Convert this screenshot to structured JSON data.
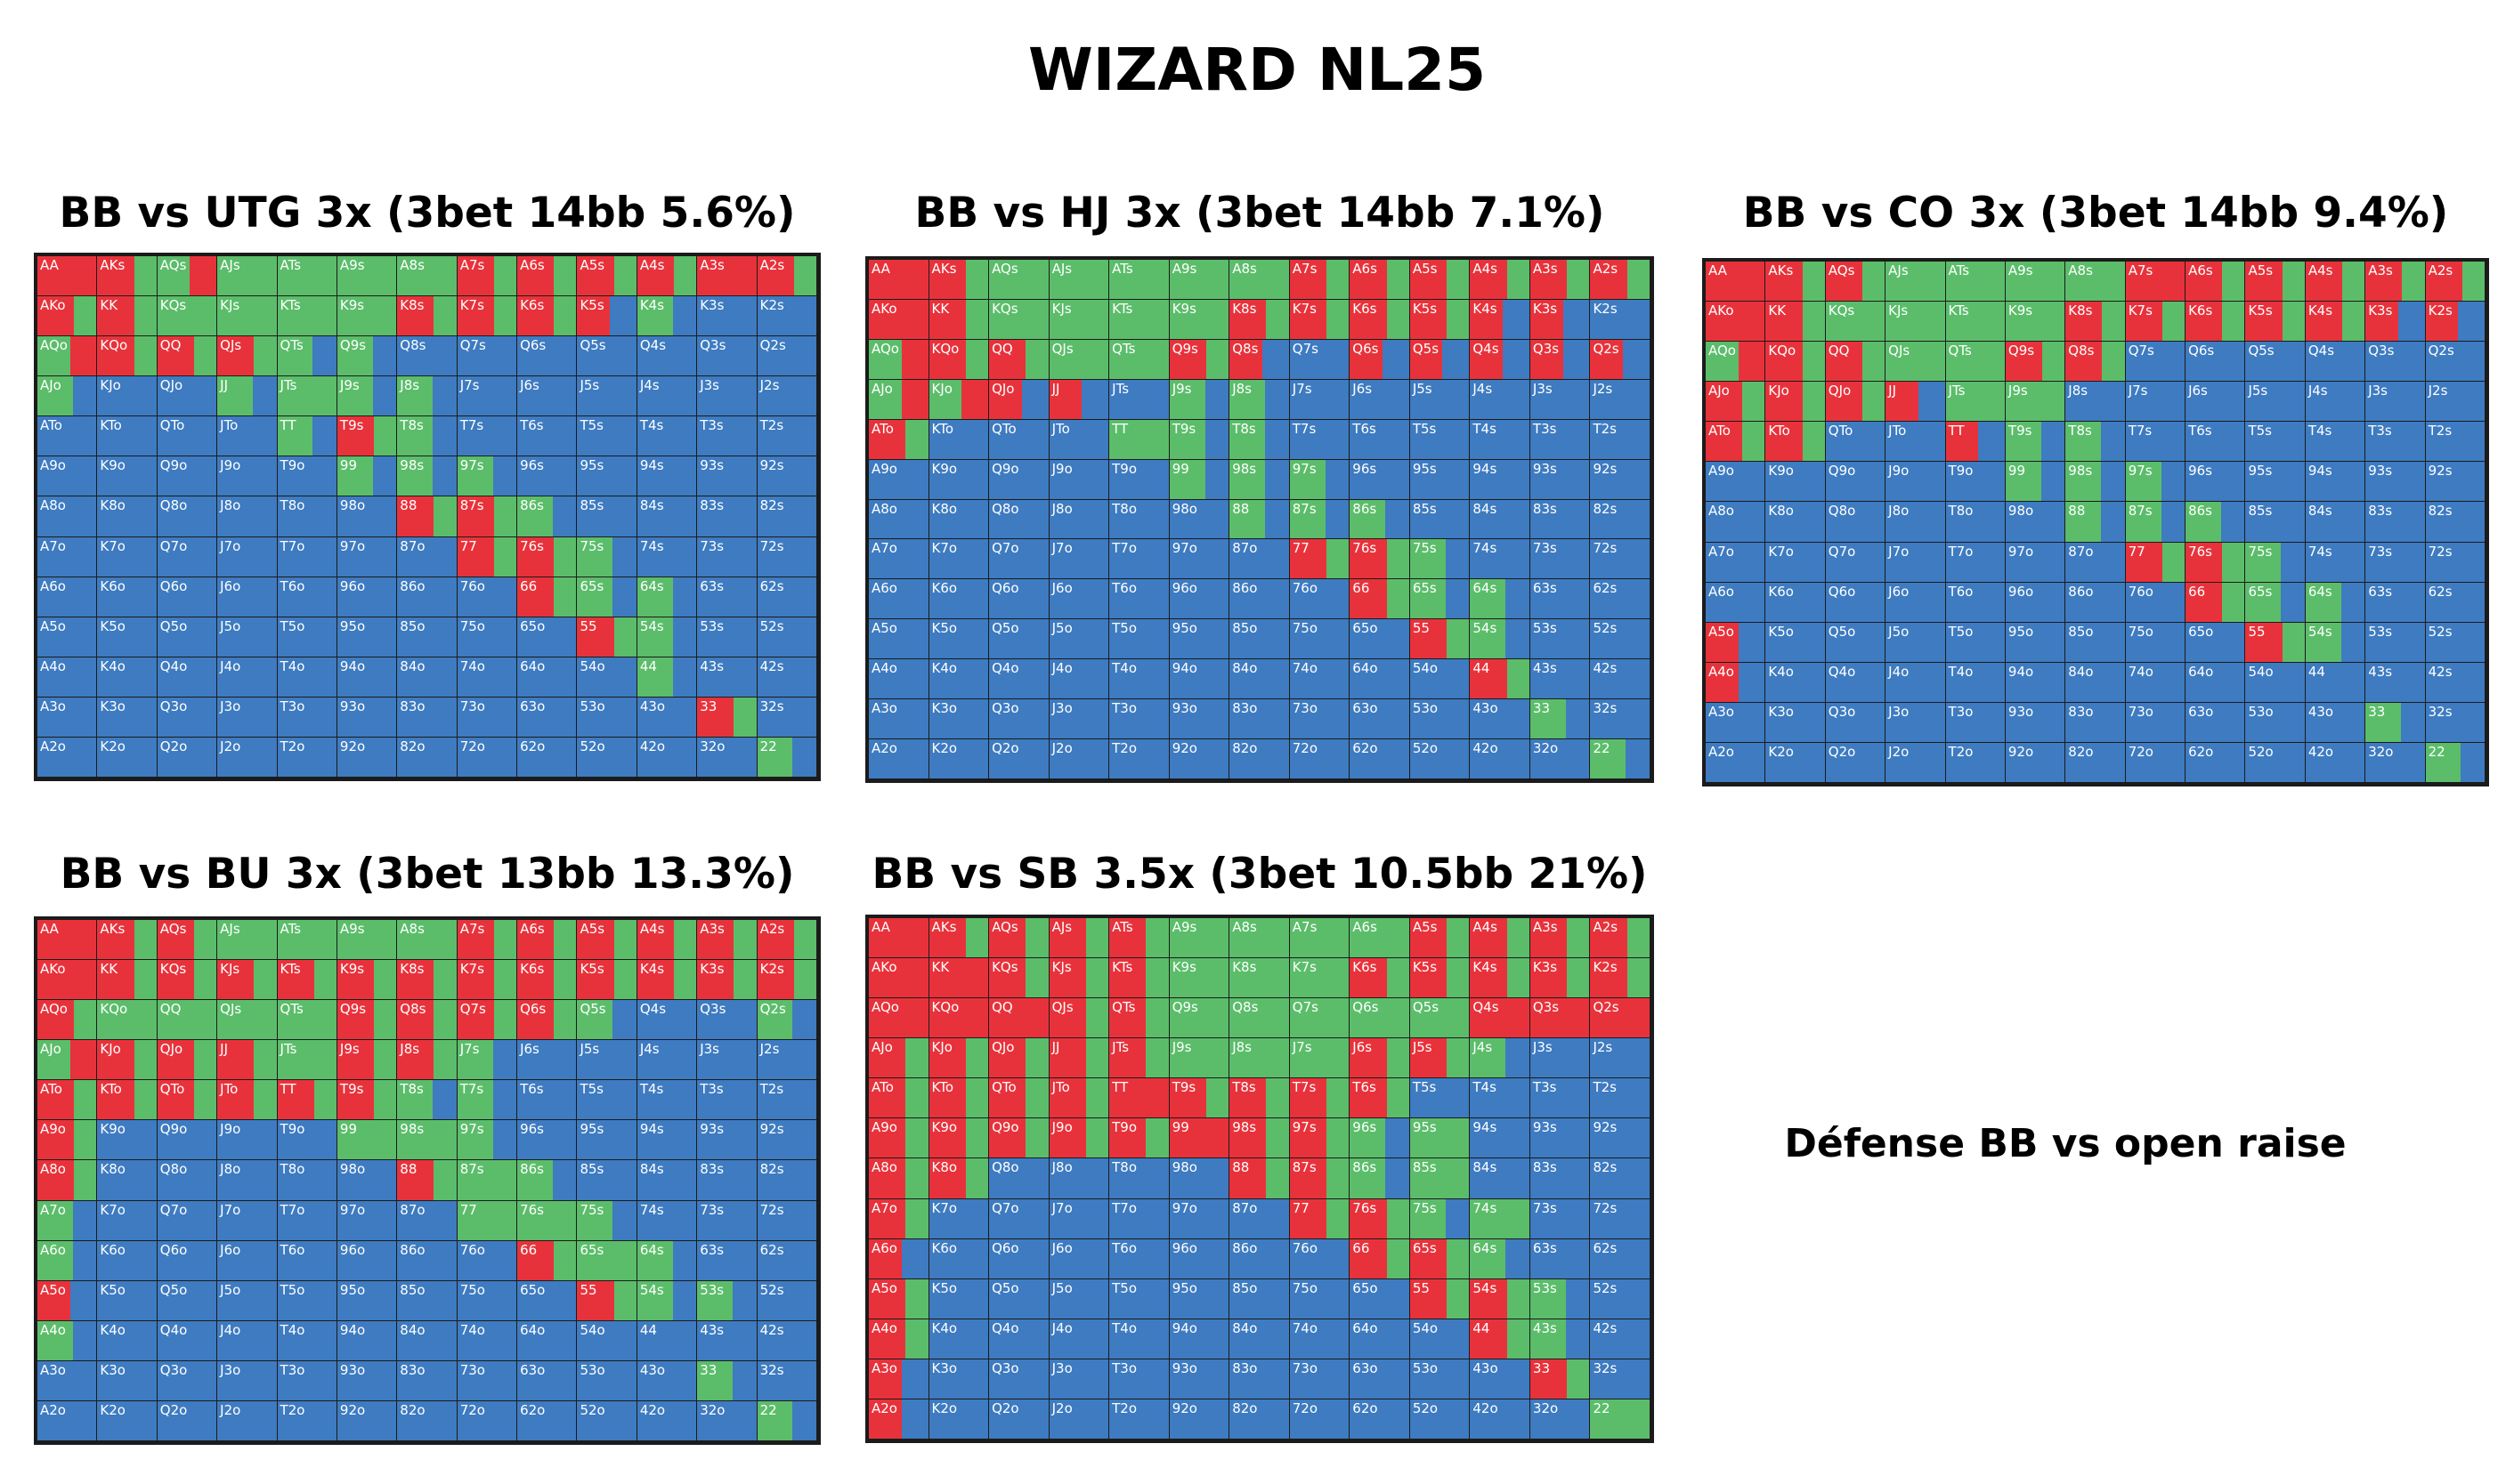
{
  "title": "WIZARD NL25",
  "caption": "Défense BB vs open raise",
  "colors": {
    "raise": "#e8323b",
    "call": "#5bbd6a",
    "fold": "#3e7bc1"
  },
  "ranks": [
    "A",
    "K",
    "Q",
    "J",
    "T",
    "9",
    "8",
    "7",
    "6",
    "5",
    "4",
    "3",
    "2"
  ],
  "charts": [
    {
      "title": "BB vs UTG 3x (3bet 14bb 5.6%)",
      "raise": [
        "AA",
        "AKs",
        "AQs",
        "A7s",
        "A6s",
        "A5s",
        "A4s",
        "A3s",
        "A2s",
        "AKo",
        "KK",
        "K8s",
        "K7s",
        "K6s",
        "K5s",
        "KQo",
        "QQ",
        "QJs",
        "66",
        "55",
        "44",
        "33"
      ],
      "call": [
        "AJs",
        "ATs",
        "A9s",
        "A8s",
        "KQs",
        "KJs",
        "KTs",
        "K9s",
        "AQo",
        "QTs",
        "AJo",
        "JJ",
        "JTs",
        "J9s",
        "TT",
        "T9s",
        "T8s",
        "99",
        "98s",
        "97s",
        "88",
        "87s",
        "86s",
        "77",
        "76s",
        "75s",
        "65s",
        "64s",
        "54s",
        "33",
        "22",
        "K4s",
        "Q9s",
        "J8s"
      ],
      "mix": {
        "AKs": "rc",
        "AQs": "cr",
        "A7s": "rc",
        "A6s": "rc",
        "A5s": "rc",
        "A4s": "rc",
        "A2s": "rc",
        "KK": "rc",
        "K8s": "rc",
        "K7s": "rc",
        "K6s": "rc",
        "K5s": "rf",
        "AKo": "rc",
        "KQo": "rc",
        "QQ": "rc",
        "QJs": "rc",
        "AQo": "cr",
        "QTs": "cf",
        "AJo": "cf",
        "JJ": "cf",
        "J9s": "cf",
        "TT": "cf",
        "T9s": "rc",
        "T8s": "cf",
        "99": "cf",
        "98s": "cf",
        "97s": "cf",
        "88": "rc",
        "87s": "rc",
        "86s": "cf",
        "77": "rc",
        "76s": "rc",
        "75s": "cf",
        "66": "rc",
        "65s": "cf",
        "64s": "cf",
        "55": "rc",
        "54s": "cf",
        "44": "cf",
        "33": "rc",
        "22": "cf",
        "K4s": "cf",
        "Q9s": "cf",
        "J8s": "cf"
      }
    },
    {
      "title": "BB vs HJ 3x (3bet 14bb 7.1%)",
      "raise": [
        "AA",
        "AKs",
        "A7s",
        "A6s",
        "A5s",
        "A4s",
        "A3s",
        "A2s",
        "AKo",
        "KK",
        "K8s",
        "K7s",
        "K6s",
        "K5s",
        "K4s",
        "K3s",
        "KQo",
        "QQ",
        "Q9s",
        "Q8s",
        "Q6s",
        "Q5s",
        "Q4s",
        "Q3s",
        "Q2s",
        "66",
        "55",
        "44",
        "AJo",
        "KJo",
        "QJo",
        "JJ",
        "T8s"
      ],
      "call": [
        "AQs",
        "AJs",
        "ATs",
        "A9s",
        "A8s",
        "KQs",
        "KJs",
        "KTs",
        "K9s",
        "AQo",
        "QJs",
        "QTs",
        "J9s",
        "ATo",
        "TT",
        "T9s",
        "99",
        "98s",
        "97s",
        "88",
        "87s",
        "86s",
        "77",
        "76s",
        "75s",
        "65s",
        "64s",
        "54s",
        "33",
        "22",
        "J8s"
      ],
      "mix": {
        "AKs": "rc",
        "A7s": "rc",
        "A6s": "rc",
        "A5s": "rc",
        "A4s": "rc",
        "A3s": "rc",
        "A2s": "rc",
        "KK": "rc",
        "K8s": "rc",
        "K7s": "rc",
        "K6s": "rc",
        "K5s": "rc",
        "K4s": "rf",
        "K3s": "rf",
        "KQo": "rc",
        "QQ": "rc",
        "Q9s": "rc",
        "Q8s": "rf",
        "Q6s": "rf",
        "Q5s": "rf",
        "Q4s": "rf",
        "Q3s": "rf",
        "Q2s": "rf",
        "AJo": "cr",
        "KJo": "cr",
        "QJo": "rf",
        "JJ": "rf",
        "ATo": "rc",
        "J9s": "cf",
        "T9s": "cf",
        "T8s": "cf",
        "99": "cf",
        "98s": "cf",
        "97s": "cf",
        "88": "cf",
        "87s": "cf",
        "86s": "cf",
        "77": "rc",
        "76s": "rc",
        "75s": "cf",
        "66": "rc",
        "65s": "cf",
        "64s": "cf",
        "55": "rc",
        "54s": "cf",
        "44": "rc",
        "33": "cf",
        "22": "cf",
        "J8s": "cf",
        "AQo": "cr"
      }
    },
    {
      "title": "BB vs CO 3x (3bet 14bb 9.4%)",
      "raise": [
        "AA",
        "AKs",
        "AQs",
        "A7s",
        "A6s",
        "A5s",
        "A4s",
        "A3s",
        "A2s",
        "AKo",
        "KK",
        "K8s",
        "K7s",
        "K6s",
        "K5s",
        "K4s",
        "K3s",
        "K2s",
        "KQo",
        "QQ",
        "Q9s",
        "Q8s",
        "AJo",
        "KJo",
        "QJo",
        "JJ",
        "ATo",
        "KTo",
        "TT",
        "66",
        "55",
        "A5o",
        "A4o"
      ],
      "call": [
        "AJs",
        "ATs",
        "A9s",
        "A8s",
        "KQs",
        "KJs",
        "KTs",
        "K9s",
        "AQo",
        "QJs",
        "QTs",
        "JTs",
        "J9s",
        "T9s",
        "T8s",
        "99",
        "98s",
        "97s",
        "88",
        "87s",
        "86s",
        "77",
        "76s",
        "75s",
        "65s",
        "64s",
        "54s",
        "33",
        "22"
      ],
      "mix": {
        "AKs": "rc",
        "AQs": "rc",
        "A6s": "rc",
        "A5s": "rc",
        "A4s": "rc",
        "A3s": "rc",
        "A2s": "rc",
        "KK": "rc",
        "K8s": "rc",
        "K7s": "rc",
        "K6s": "rc",
        "K5s": "rc",
        "K4s": "rc",
        "K3s": "rf",
        "K2s": "rf",
        "KQo": "rc",
        "QQ": "rc",
        "Q9s": "rc",
        "Q8s": "rc",
        "AJo": "rc",
        "KJo": "rc",
        "QJo": "rc",
        "JJ": "rf",
        "ATo": "rc",
        "KTo": "rc",
        "TT": "rf",
        "A5o": "rf",
        "A4o": "rf",
        "AQo": "cr",
        "T9s": "cf",
        "T8s": "cf",
        "99": "cf",
        "98s": "cf",
        "97s": "cf",
        "88": "cf",
        "87s": "cf",
        "86s": "cf",
        "77": "rc",
        "76s": "rc",
        "75s": "cf",
        "66": "rc",
        "65s": "cf",
        "64s": "cf",
        "55": "rc",
        "54s": "cf",
        "33": "cf",
        "22": "cf"
      }
    },
    {
      "title": "BB vs BU 3x (3bet 13bb 13.3%)",
      "raise": [
        "AA",
        "AKs",
        "AQs",
        "A7s",
        "A6s",
        "A5s",
        "A4s",
        "A3s",
        "A2s",
        "AKo",
        "KK",
        "KQs",
        "KJs",
        "KTs",
        "K9s",
        "K8s",
        "K7s",
        "K6s",
        "K5s",
        "K4s",
        "K3s",
        "K2s",
        "AQo",
        "Q9s",
        "Q8s",
        "Q7s",
        "Q6s",
        "KJo",
        "QJo",
        "JJ",
        "J9s",
        "J8s",
        "ATo",
        "KTo",
        "QTo",
        "JTo",
        "TT",
        "T9s",
        "A9o",
        "A8o",
        "A5o",
        "88",
        "66",
        "55"
      ],
      "call": [
        "AJs",
        "ATs",
        "A9s",
        "A8s",
        "KQo",
        "QQ",
        "QJs",
        "QTs",
        "Q5s",
        "AJo",
        "JTs",
        "T8s",
        "T7s",
        "99",
        "98s",
        "97s",
        "87s",
        "86s",
        "77",
        "76s",
        "75s",
        "65s",
        "64s",
        "54s",
        "53s",
        "33",
        "22",
        "A7o",
        "A6o",
        "A4o",
        "Q2s",
        "J7s"
      ],
      "mix": {
        "AKs": "rc",
        "AQs": "rc",
        "A7s": "rc",
        "A6s": "rc",
        "A5s": "rc",
        "A4s": "rc",
        "A3s": "rc",
        "A2s": "rc",
        "KK": "rc",
        "KQs": "rc",
        "KJs": "rc",
        "KTs": "rc",
        "K9s": "rc",
        "K8s": "rc",
        "K7s": "rc",
        "K6s": "rc",
        "K5s": "rc",
        "K4s": "rc",
        "K3s": "rc",
        "K2s": "rc",
        "AQo": "rc",
        "Q9s": "rc",
        "Q8s": "rc",
        "Q7s": "rc",
        "Q6s": "rc",
        "KJo": "rc",
        "QJo": "rc",
        "JJ": "rc",
        "J9s": "rc",
        "J8s": "rc",
        "ATo": "rc",
        "KTo": "rc",
        "QTo": "rc",
        "JTo": "rc",
        "TT": "rc",
        "T9s": "rc",
        "A9o": "rc",
        "A8o": "rc",
        "A5o": "rf",
        "88": "rc",
        "66": "rc",
        "55": "rc",
        "AJo": "cr",
        "T8s": "cf",
        "T7s": "cf",
        "97s": "cf",
        "86s": "cf",
        "75s": "cf",
        "64s": "cf",
        "54s": "cf",
        "53s": "cf",
        "A7o": "cf",
        "A6o": "cf",
        "A4o": "cf",
        "Q2s": "cf",
        "J7s": "cf",
        "33": "cf",
        "22": "cf",
        "Q5s": "cf"
      }
    },
    {
      "title": "BB vs SB 3.5x (3bet 10.5bb 21%)",
      "raise": [
        "AA",
        "AKs",
        "AQs",
        "AJs",
        "ATs",
        "A5s",
        "A4s",
        "A3s",
        "A2s",
        "AKo",
        "KK",
        "KQs",
        "KJs",
        "KTs",
        "K6s",
        "K5s",
        "K4s",
        "K3s",
        "K2s",
        "AQo",
        "KQo",
        "QQ",
        "QJs",
        "QTs",
        "Q4s",
        "Q3s",
        "Q2s",
        "AJo",
        "KJo",
        "QJo",
        "JJ",
        "JTs",
        "J6s",
        "J5s",
        "ATo",
        "KTo",
        "QTo",
        "JTo",
        "TT",
        "T9s",
        "T8s",
        "T7s",
        "T6s",
        "A9o",
        "K9o",
        "Q9o",
        "J9o",
        "T9o",
        "99",
        "98s",
        "97s",
        "A8o",
        "K8o",
        "88",
        "87s",
        "A7o",
        "77",
        "76s",
        "A6o",
        "66",
        "65s",
        "A5o",
        "55",
        "54s",
        "A4o",
        "44",
        "A3o",
        "33",
        "A2o"
      ],
      "call": [
        "A9s",
        "A8s",
        "A7s",
        "A6s",
        "K9s",
        "K8s",
        "K7s",
        "Q9s",
        "Q8s",
        "Q7s",
        "Q6s",
        "Q5s",
        "J9s",
        "J8s",
        "J7s",
        "J4s",
        "96s",
        "95s",
        "86s",
        "85s",
        "75s",
        "74s",
        "64s",
        "53s",
        "43s",
        "22"
      ],
      "mix": {
        "AKs": "rc",
        "AQs": "rc",
        "AJs": "rc",
        "ATs": "rc",
        "A5s": "rc",
        "A4s": "rc",
        "A3s": "rc",
        "A2s": "rc",
        "KQs": "rc",
        "KJs": "rc",
        "KTs": "rc",
        "K6s": "rc",
        "K5s": "rc",
        "K4s": "rc",
        "K3s": "rc",
        "K2s": "rc",
        "QJs": "rc",
        "QTs": "rc",
        "AJo": "rc",
        "KJo": "rc",
        "QJo": "rc",
        "JJ": "rc",
        "JTs": "rc",
        "J6s": "rc",
        "J5s": "rc",
        "ATo": "rc",
        "KTo": "rc",
        "QTo": "rc",
        "JTo": "rc",
        "T9s": "rc",
        "T8s": "rc",
        "T7s": "rc",
        "T6s": "rc",
        "A9o": "rc",
        "K9o": "rc",
        "Q9o": "rc",
        "J9o": "rc",
        "T9o": "rc",
        "98s": "rc",
        "97s": "rc",
        "A8o": "rc",
        "K8o": "rc",
        "88": "rc",
        "87s": "rc",
        "A7o": "rc",
        "77": "rc",
        "76s": "rc",
        "A6o": "rf",
        "66": "rc",
        "65s": "rc",
        "A5o": "rc",
        "55": "rc",
        "54s": "rc",
        "A4o": "rc",
        "44": "rc",
        "A3o": "rf",
        "33": "rc",
        "A2o": "rf",
        "J4s": "cf",
        "96s": "cf",
        "86s": "cf",
        "75s": "cf",
        "64s": "cf",
        "53s": "cf",
        "43s": "cf"
      }
    }
  ]
}
